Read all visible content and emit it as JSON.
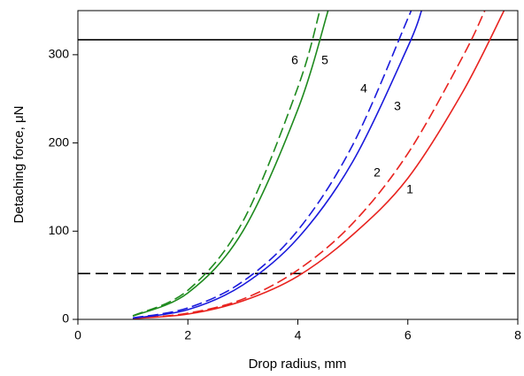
{
  "chart_data": {
    "type": "line",
    "xlabel": "Drop radius, mm",
    "ylabel": "Detaching force, μN",
    "xlim": [
      0,
      8
    ],
    "xticks": [
      0,
      2,
      4,
      6,
      8
    ],
    "ylim": [
      0,
      350
    ],
    "yticks": [
      0,
      100,
      200,
      300
    ],
    "hlines": [
      {
        "value": 317,
        "dashed": false,
        "color": "#000000"
      },
      {
        "value": 52,
        "dashed": true,
        "color": "#000000"
      }
    ],
    "series": [
      {
        "name": "1",
        "color": "#e8231f",
        "dashed": false,
        "x": [
          1,
          2,
          3,
          4,
          5,
          6,
          7,
          7.75
        ],
        "values": [
          1,
          6,
          21,
          49,
          96,
          160,
          258,
          350
        ]
      },
      {
        "name": "2",
        "color": "#e8231f",
        "dashed": true,
        "x": [
          1,
          2,
          3,
          4,
          5,
          6,
          7,
          7.4
        ],
        "values": [
          1,
          7,
          23,
          56,
          109,
          188,
          298,
          350
        ]
      },
      {
        "name": "3",
        "color": "#1a1adc",
        "dashed": false,
        "x": [
          1,
          2,
          3,
          4,
          5,
          6,
          6.25
        ],
        "values": [
          1.4,
          11,
          39,
          92,
          179,
          309,
          350
        ]
      },
      {
        "name": "4",
        "color": "#1a1adc",
        "dashed": true,
        "x": [
          1,
          2,
          3,
          4,
          5,
          6,
          6.05
        ],
        "values": [
          1.6,
          13,
          43,
          101,
          198,
          341,
          350
        ]
      },
      {
        "name": "5",
        "color": "#1e8a1e",
        "dashed": false,
        "x": [
          1,
          2,
          3,
          4,
          4.55
        ],
        "values": [
          3.7,
          30,
          100,
          238,
          350
        ]
      },
      {
        "name": "6",
        "color": "#1e8a1e",
        "dashed": true,
        "x": [
          1,
          2,
          3,
          4,
          4.4
        ],
        "values": [
          4.1,
          33,
          111,
          263,
          350
        ]
      }
    ]
  }
}
